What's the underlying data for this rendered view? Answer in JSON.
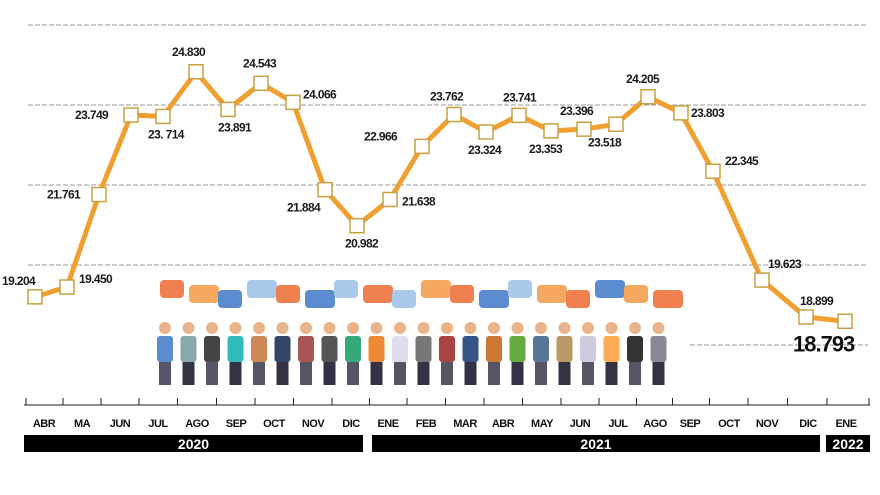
{
  "chart_data": {
    "type": "line",
    "title": "",
    "xlabel": "",
    "ylabel": "",
    "x": [
      "ABR 2020",
      "MAY 2020",
      "JUN 2020",
      "JUL 2020",
      "JUL 2020",
      "AGO 2020",
      "SEP 2020",
      "OCT 2020",
      "OCT 2020",
      "NOV 2020",
      "DIC 2020",
      "ENE 2021",
      "ENE 2021",
      "FEB 2021",
      "MAR 2021",
      "ABR 2021",
      "MAY 2021",
      "JUN 2021",
      "JUL 2021",
      "AGO 2021",
      "SEP 2021",
      "OCT 2021",
      "NOV 2021",
      "DIC 2021",
      "ENE 2022"
    ],
    "values": [
      19204,
      19450,
      21761,
      23749,
      23714,
      24830,
      23891,
      24543,
      24066,
      21884,
      20982,
      21638,
      22966,
      23762,
      23324,
      23741,
      23353,
      23396,
      23518,
      24205,
      23803,
      22345,
      19623,
      18899,
      18793
    ],
    "value_labels": [
      "19.204",
      "19.450",
      "21.761",
      "23.749",
      "23. 714",
      "24.830",
      "23.891",
      "24.543",
      "24.066",
      "21.884",
      "20.982",
      "21.638",
      "22.966",
      "23.762",
      "23.324",
      "23.741",
      "23.353",
      "23.396",
      "23.518",
      "24.205",
      "23.803",
      "22.345",
      "19.623",
      "18.899",
      "18.793"
    ],
    "month_ticks": [
      "ABR",
      "MA",
      "JUN",
      "JUL",
      "AGO",
      "SEP",
      "OCT",
      "NOV",
      "DIC",
      "ENE",
      "FEB",
      "MAR",
      "ABR",
      "MAY",
      "JUN",
      "JUL",
      "AGO",
      "SEP",
      "OCT",
      "NOV",
      "DIC",
      "ENE"
    ],
    "years": [
      "2020",
      "2021",
      "2022"
    ],
    "grid": true,
    "line_color": "#f0a030",
    "marker": "hollow-square"
  }
}
